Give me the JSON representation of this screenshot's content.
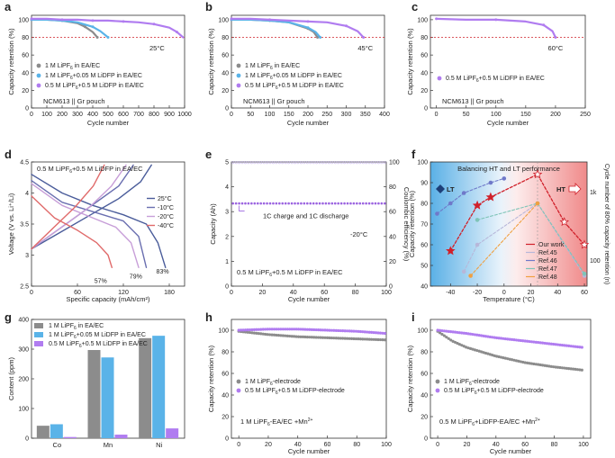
{
  "colors": {
    "gray": "#8c8c8c",
    "blue": "#5ab3e8",
    "purple": "#b07cf0",
    "darkblue": "#4a5c9a",
    "red": "#d0202a"
  },
  "common": {
    "cr_label": "Capacity retention (%)",
    "cycle_label": "Cycle number",
    "cell": "NCM613 || Gr pouch",
    "leg_1m": "1 M LiPF6 in EA/EC",
    "leg_005": "1 M LiPF6+0.05 M LiDFP in EA/EC",
    "leg_05": "0.5 M LiPF6+0.5 M LiDFP in EA/EC"
  },
  "chart_data": [
    {
      "id": "a",
      "type": "line",
      "temp": "25°C",
      "xlim": [
        0,
        1000
      ],
      "ylim": [
        0,
        105
      ],
      "xticks": [
        0,
        100,
        200,
        300,
        400,
        500,
        600,
        700,
        800,
        900,
        1000
      ],
      "yticks": [
        0,
        20,
        40,
        60,
        80,
        100
      ],
      "cutoff": 80,
      "series": [
        {
          "name": "1 M LiPF6 in EA/EC",
          "color": "gray",
          "x": [
            0,
            100,
            200,
            300,
            350,
            400,
            430
          ],
          "y": [
            100,
            100,
            99,
            96,
            92,
            86,
            80
          ]
        },
        {
          "name": "1 M LiPF6+0.05 M LiDFP in EA/EC",
          "color": "blue",
          "x": [
            0,
            100,
            200,
            300,
            400,
            450,
            500
          ],
          "y": [
            100,
            100,
            99,
            97,
            92,
            87,
            80
          ]
        },
        {
          "name": "0.5 M LiPF6+0.5 M LiDFP in EA/EC",
          "color": "purple",
          "x": [
            0,
            100,
            200,
            300,
            400,
            500,
            600,
            700,
            800,
            900,
            950,
            990
          ],
          "y": [
            101,
            101,
            100,
            100,
            99,
            99,
            98,
            97,
            95,
            91,
            86,
            80
          ]
        }
      ]
    },
    {
      "id": "b",
      "type": "line",
      "temp": "45°C",
      "xlim": [
        0,
        400
      ],
      "ylim": [
        0,
        105
      ],
      "xticks": [
        0,
        50,
        100,
        150,
        200,
        250,
        300,
        350,
        400
      ],
      "yticks": [
        0,
        20,
        40,
        60,
        80,
        100
      ],
      "cutoff": 80,
      "series": [
        {
          "name": "1 M LiPF6 in EA/EC",
          "color": "gray",
          "x": [
            0,
            50,
            100,
            150,
            200,
            215,
            225
          ],
          "y": [
            100,
            100,
            99,
            97,
            90,
            86,
            80
          ]
        },
        {
          "name": "1 M LiPF6+0.05 M LiDFP in EA/EC",
          "color": "blue",
          "x": [
            0,
            50,
            100,
            150,
            200,
            220,
            232
          ],
          "y": [
            100,
            100,
            99,
            97,
            91,
            86,
            80
          ]
        },
        {
          "name": "0.5 M LiPF6+0.5 M LiDFP in EA/EC",
          "color": "purple",
          "x": [
            0,
            50,
            100,
            150,
            200,
            250,
            300,
            330,
            345
          ],
          "y": [
            101,
            101,
            100,
            99,
            98,
            97,
            93,
            87,
            80
          ]
        }
      ]
    },
    {
      "id": "c",
      "type": "line",
      "temp": "60°C",
      "xlim": [
        -10,
        250
      ],
      "ylim": [
        0,
        105
      ],
      "xticks": [
        0,
        50,
        100,
        150,
        200,
        250
      ],
      "yticks": [
        0,
        20,
        40,
        60,
        80,
        100
      ],
      "cutoff": 80,
      "series": [
        {
          "name": "0.5 M LiPF6+0.5 M LiDFP in EA/EC",
          "color": "purple",
          "x": [
            0,
            50,
            100,
            150,
            180,
            195,
            200
          ],
          "y": [
            101,
            100,
            100,
            98,
            94,
            87,
            80
          ]
        }
      ]
    },
    {
      "id": "d",
      "type": "line",
      "title": "0.5 M LiPF6+0.5 M LiDFP in EA/EC",
      "xlabel": "Specific capacity (mAh/cm2)",
      "ylabel": "Voltage (V vs. Li+/Li)",
      "xlim": [
        0,
        200
      ],
      "ylim": [
        2.5,
        4.5
      ],
      "xticks": [
        0,
        60,
        120,
        180
      ],
      "yticks": [
        2.5,
        3.0,
        3.5,
        4.0,
        4.5
      ],
      "series": [
        {
          "name": "25°C",
          "color": "#4a5c9a",
          "pct": "",
          "x": [
            0,
            40,
            80,
            120,
            150,
            165,
            175
          ],
          "y": [
            4.3,
            4.0,
            3.8,
            3.65,
            3.5,
            3.2,
            2.8
          ]
        },
        {
          "name": "-10°C",
          "color": "#6a6fb0",
          "pct": "83%",
          "x": [
            0,
            40,
            80,
            120,
            140,
            150
          ],
          "y": [
            4.2,
            3.85,
            3.7,
            3.55,
            3.3,
            2.8
          ]
        },
        {
          "name": "-20°C",
          "color": "#c79ed8",
          "pct": "79%",
          "x": [
            0,
            40,
            80,
            110,
            130,
            140
          ],
          "y": [
            4.15,
            3.8,
            3.6,
            3.45,
            3.2,
            2.8
          ]
        },
        {
          "name": "-40°C",
          "color": "#e06a6a",
          "pct": "57%",
          "x": [
            0,
            30,
            60,
            85,
            100,
            105
          ],
          "y": [
            3.95,
            3.6,
            3.4,
            3.2,
            3.0,
            2.8
          ]
        }
      ]
    },
    {
      "id": "e",
      "type": "scatter",
      "xlabel": "Cycle number",
      "ylabel": "Capacity (Ah)",
      "ylabel2": "Coulombic efficiency (%)",
      "xlim": [
        0,
        100
      ],
      "ylim": [
        0,
        5
      ],
      "ylim2": [
        0,
        100
      ],
      "xticks": [
        0,
        20,
        40,
        60,
        80,
        100
      ],
      "yticks": [
        0,
        1,
        2,
        3,
        4,
        5
      ],
      "yticks2": [
        0,
        20,
        40,
        60,
        80,
        100
      ],
      "cap": 3.35,
      "ce": 99.5,
      "annotation": "1C charge and 1C discharge",
      "temp": "-20°C",
      "legend": "0.5 M LiPF6+0.5 M LiDFP in EA/EC"
    },
    {
      "id": "f",
      "type": "line",
      "title": "Balancing HT and LT performance",
      "xlabel": "Temperature (°C)",
      "ylabel": "Capacity retention (%)",
      "ylabel2": "Cycle number of 80% capacity retention (n)",
      "xlim": [
        -55,
        62
      ],
      "ylim": [
        40,
        100
      ],
      "xticks": [
        -40,
        -20,
        0,
        20,
        40,
        60
      ],
      "yticks": [
        40,
        50,
        60,
        70,
        80,
        90,
        100
      ],
      "lt": "LT",
      "ht": "HT",
      "right_tick": "1k",
      "right_tick2": "100",
      "series": [
        {
          "name": "Our work",
          "color": "#d0202a",
          "x": [
            -40,
            -20,
            -10,
            25,
            45,
            60
          ],
          "y": [
            57,
            79,
            83,
            94,
            71,
            60
          ]
        },
        {
          "name": "Ref.45",
          "color": "#b7b7d9",
          "x": [
            -30,
            -20,
            25,
            60
          ],
          "y": [
            47,
            60,
            80,
            45
          ]
        },
        {
          "name": "Ref.46",
          "color": "#6f79c9",
          "x": [
            -50,
            -40,
            -30,
            -10,
            0
          ],
          "y": [
            75,
            80,
            85,
            90,
            92
          ]
        },
        {
          "name": "Ref.47",
          "color": "#7fc4b8",
          "x": [
            -20,
            25,
            60
          ],
          "y": [
            72,
            80,
            46
          ]
        },
        {
          "name": "Ref.48",
          "color": "#f0a040",
          "x": [
            -25,
            25
          ],
          "y": [
            45,
            80
          ]
        }
      ]
    },
    {
      "id": "g",
      "type": "bar",
      "ylabel": "Content (ppm)",
      "categories": [
        "Co",
        "Mn",
        "Ni"
      ],
      "ylim": [
        0,
        400
      ],
      "yticks": [
        0,
        100,
        200,
        300,
        400
      ],
      "series": [
        {
          "name": "1 M LiPF6 in EA/EC",
          "color": "gray",
          "values": [
            42,
            297,
            337
          ]
        },
        {
          "name": "1 M LiPF6+0.05 M LiDFP in EA/EC",
          "color": "blue",
          "values": [
            47,
            272,
            345
          ]
        },
        {
          "name": "0.5 M LiPF6+0.5 M LiDFP in EA/EC",
          "color": "purple",
          "values": [
            4,
            12,
            33
          ]
        }
      ]
    },
    {
      "id": "h",
      "type": "line",
      "xlim": [
        -5,
        100
      ],
      "ylim": [
        0,
        110
      ],
      "xticks": [
        0,
        20,
        40,
        60,
        80,
        100
      ],
      "yticks": [
        0,
        20,
        40,
        60,
        80,
        100
      ],
      "note": "1 M LiPF6-EA/EC +Mn2+",
      "series": [
        {
          "name": "1 M LiPF6-electrode",
          "color": "gray",
          "x": [
            0,
            20,
            40,
            60,
            80,
            100
          ],
          "y": [
            99,
            96,
            94,
            93,
            92,
            91
          ]
        },
        {
          "name": "0.5 M LiPF6+0.5 M LiDFP-electrode",
          "color": "purple",
          "x": [
            0,
            20,
            40,
            60,
            80,
            100
          ],
          "y": [
            100,
            101,
            101,
            100,
            99,
            97
          ]
        }
      ]
    },
    {
      "id": "i",
      "type": "line",
      "xlim": [
        -5,
        105
      ],
      "ylim": [
        0,
        110
      ],
      "xticks": [
        0,
        20,
        40,
        60,
        80,
        100
      ],
      "yticks": [
        0,
        20,
        40,
        60,
        80,
        100
      ],
      "note": "0.5 M LiPF6+LiDFP-EA/EC +Mn2+",
      "series": [
        {
          "name": "1 M LiPF6-electrode",
          "color": "gray",
          "x": [
            0,
            10,
            20,
            40,
            60,
            80,
            100
          ],
          "y": [
            99,
            90,
            84,
            76,
            70,
            66,
            63
          ]
        },
        {
          "name": "0.5 M LiPF6+0.5 M LiDFP-electrode",
          "color": "purple",
          "x": [
            0,
            20,
            40,
            60,
            80,
            100
          ],
          "y": [
            100,
            97,
            93,
            90,
            87,
            84
          ]
        }
      ]
    }
  ]
}
